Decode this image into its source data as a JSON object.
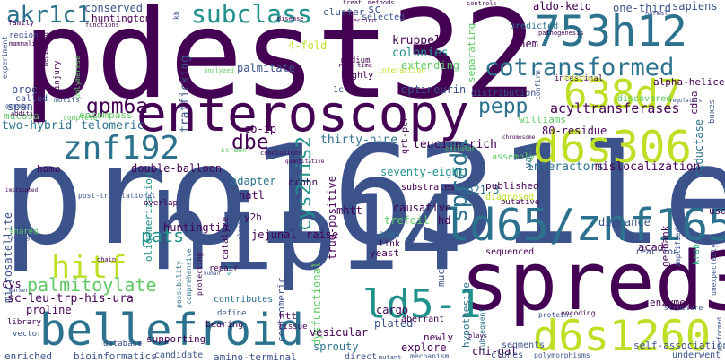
{
  "palette": {
    "purple": "#440154",
    "indigo": "#3b528b",
    "blue": "#2c728e",
    "teal": "#21918c",
    "green": "#28ae80",
    "lime": "#5ec962",
    "yellow": "#bddf26"
  },
  "words": {
    "pro1631leu": "pro1631leu",
    "pdest32": "pdest32",
    "hip14": "hip14",
    "spred3": "spred3",
    "enteroscopy": "enteroscopy",
    "bellefroid": "bellefroid",
    "ld65_znf165": "ld65/znf165",
    "d6s306": "d6s306",
    "d6s1260": "d6s1260",
    "h753h12": "753h12",
    "h638d7": "638d7",
    "ld5_1": "ld5-1",
    "znf192": "znf192",
    "hitf": "hitf",
    "subclass": "subclass",
    "cotransformed": "cotransformed",
    "akr1c1": "akr1c1",
    "gpm6a": "gpm6a",
    "pepp": "pepp",
    "dbe": "dbe",
    "cys2his2": "cys2his2",
    "spred1": "spred1",
    "pats": "pats",
    "palmitoylate": "palmitoylate",
    "conserved": "conserved",
    "huntington": "huntington",
    "colonies": "colonies",
    "kruppel": "kruppel",
    "chem": "chem",
    "aldo_keto": "aldo-keto",
    "one_third": "one-third",
    "sapiens": "sapiens",
    "optineurin": "optineurin",
    "palmitate": "palmitate",
    "acyltransferases": "acyltransferases",
    "williams": "williams",
    "trafficking": "trafficking",
    "proc": "proc",
    "span": "span",
    "mucosa": "mucosa",
    "called": "called",
    "two_hybrid": "two-hybrid",
    "homo": "homo",
    "telomeric": "telomeric",
    "encompass": "encompass",
    "co_ip": "co-ip",
    "thirty_nine": "thirty-nine",
    "leucine_rich": "leucine-rich",
    "r80_residue": "80-residue",
    "seventy_eight": "seventy-eight",
    "interactors": "interactors",
    "mislocalization": "mislocalization",
    "reductase": "reductase",
    "double_balloon": "double-balloon",
    "oligomerization": "oligomerization",
    "adapter": "adapter",
    "natl": "natl",
    "crohn": "crohn",
    "mhtt": "mhtt",
    "causative": "causative",
    "hd": "hd",
    "trefoil": "trefoil",
    "p6p21_3": "6p21.3",
    "distance": "distance",
    "genbank": "genbank",
    "catalyze": "catalyze",
    "y2h": "y2h",
    "huntingtin": "huntingtin",
    "jejunal": "jejunal",
    "raise": "raise",
    "yeast": "yeast",
    "aims": "aims",
    "link": "link",
    "mucosal": "mucosal",
    "acad": "acad",
    "cys": "cys",
    "sc_leu_trp": "sc-leu-trp-his-ura",
    "proline": "proline",
    "dysfunctional": "dysfunctional",
    "cargo": "cargo",
    "vesicular": "vesicular",
    "sprouty": "sprouty",
    "centromeric": "centromeric",
    "plated": "plated",
    "hypothesize": "hypothesize",
    "chi_gal": "chi-gal",
    "explore": "explore",
    "newly": "newly",
    "htt": "htt",
    "tissue": "tissue",
    "supporting": "supporting",
    "amino_terminal": "amino-terminal",
    "enriched": "enriched",
    "bioinformatics": "bioinformatics",
    "candidate": "candidate",
    "microsatellite": "microsatellite",
    "qrt_pcr": "qrt-pcr",
    "f4_fold": "4-fold",
    "extending": "extending",
    "separating": "separating",
    "medium": "medium",
    "highly": "highly",
    "selected": "selected",
    "cluster": "cluster",
    "sc": "sc",
    "predicted": "predicted",
    "intestinal": "intestinal",
    "alpha_helices": "alpha-helices",
    "cdna": "cdna",
    "discovered": "discovered",
    "boxes": "boxes",
    "yacs": "yacs",
    "distribution": "distribution",
    "self_association": "self-association",
    "underwent": "underwent",
    "krab": "krab",
    "usa": "usa",
    "enzyme": "enzyme",
    "published": "published",
    "sequenced": "sequenced",
    "diagnosed": "diagnosed",
    "substrates": "substrates",
    "assembly": "assembly",
    "putative": "putative",
    "reaction": "reaction",
    "aberrant": "aberrant",
    "segments": "segments",
    "clones": "clones",
    "direct": "direct",
    "true_positive": "true-positive",
    "c1c": "1c",
    "post_translational": "post-translational",
    "overlap": "overlap",
    "repair": "repair",
    "contributes": "contributes",
    "define": "define",
    "bearing": "bearing",
    "structure": "structure",
    "amplified": "amplified",
    "proteins": "proteins",
    "encoding": "encoding",
    "polymorphisms": "polymorphisms",
    "mechanism": "mechanism",
    "mutant": "mutant",
    "library": "library",
    "vector": "vector",
    "database": "database",
    "methods": "methods",
    "controls": "controls",
    "normal": "normal",
    "treat": "treat",
    "detection": "detection",
    "disease": "disease",
    "kb": "kb",
    "functions": "functions",
    "region": "region",
    "mammalian": "mammalian",
    "mediating": "mediating",
    "family": "family",
    "experiment": "experiment",
    "genomic": "genomic",
    "addition": "addition",
    "motifs": "motifs",
    "injury": "injury",
    "polymerase": "polymerase",
    "analyzed": "analyzed",
    "real_time": "real-time",
    "interaction": "interaction",
    "complete": "complete",
    "confirm": "confirm",
    "defective": "defective",
    "regulators": "regulators",
    "screen": "screen",
    "conclusions": "conclusions",
    "quantitative": "quantitative",
    "element": "element",
    "human": "human",
    "comprehensive": "comprehensive",
    "possibility": "possibility",
    "protecting": "protecting",
    "lacking": "lacking",
    "shared": "shared",
    "implicated": "implicated",
    "marker": "marker",
    "plays": "plays",
    "cellular": "cellular",
    "chromosome": "chromosome",
    "total": "total",
    "unexpectedly": "unexpectedly",
    "performed": "performed",
    "chain": "chain",
    "pathogenesis": "pathogenesis",
    "subsequent": "subsequent",
    "set": "set"
  }
}
